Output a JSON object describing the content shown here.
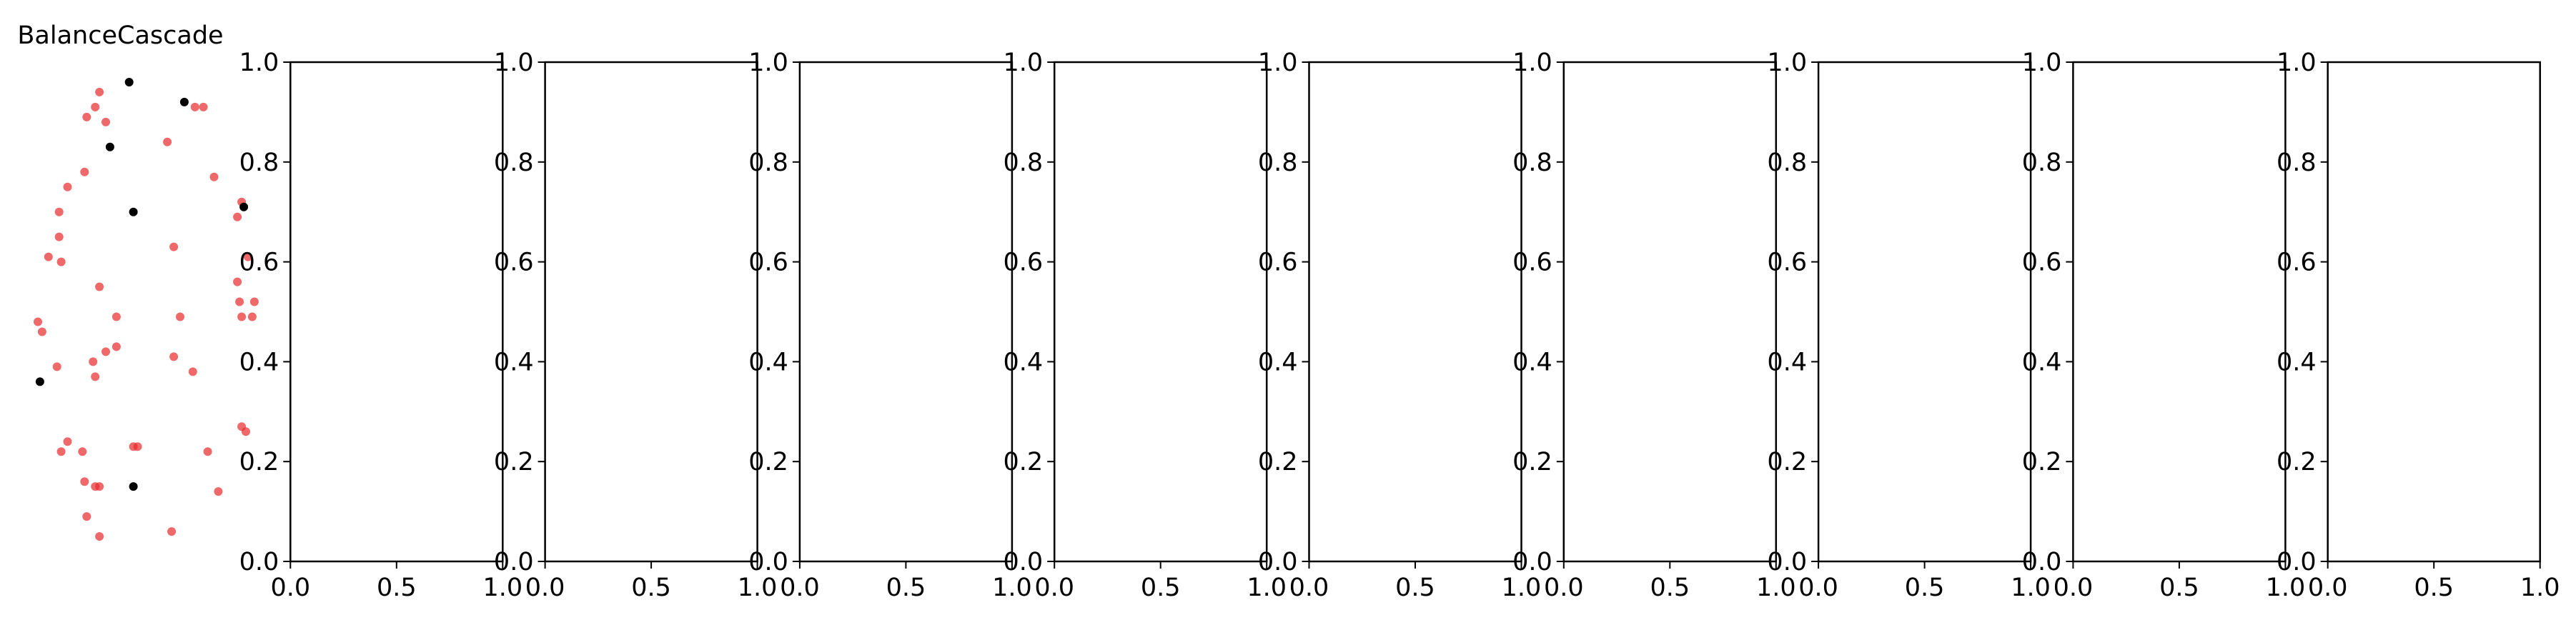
{
  "chart_data": [
    {
      "type": "scatter",
      "title": "BalanceCascade",
      "axes_visible": false,
      "xlim": [
        0,
        1
      ],
      "ylim": [
        0,
        1
      ],
      "series": [
        {
          "color": "#e8282b",
          "points": [
            [
              0.3,
              0.94
            ],
            [
              0.28,
              0.91
            ],
            [
              0.24,
              0.89
            ],
            [
              0.33,
              0.88
            ],
            [
              0.75,
              0.91
            ],
            [
              0.79,
              0.91
            ],
            [
              0.62,
              0.84
            ],
            [
              0.23,
              0.78
            ],
            [
              0.15,
              0.75
            ],
            [
              0.84,
              0.77
            ],
            [
              0.11,
              0.7
            ],
            [
              0.95,
              0.69
            ],
            [
              0.97,
              0.72
            ],
            [
              0.11,
              0.65
            ],
            [
              0.06,
              0.61
            ],
            [
              0.12,
              0.6
            ],
            [
              0.65,
              0.63
            ],
            [
              1.0,
              0.61
            ],
            [
              0.95,
              0.56
            ],
            [
              0.3,
              0.55
            ],
            [
              0.01,
              0.48
            ],
            [
              0.03,
              0.46
            ],
            [
              0.38,
              0.49
            ],
            [
              0.68,
              0.49
            ],
            [
              0.96,
              0.52
            ],
            [
              1.03,
              0.52
            ],
            [
              0.97,
              0.49
            ],
            [
              1.02,
              0.49
            ],
            [
              0.38,
              0.43
            ],
            [
              0.33,
              0.42
            ],
            [
              0.27,
              0.4
            ],
            [
              0.65,
              0.41
            ],
            [
              0.1,
              0.39
            ],
            [
              0.28,
              0.37
            ],
            [
              0.74,
              0.38
            ],
            [
              0.15,
              0.24
            ],
            [
              0.12,
              0.22
            ],
            [
              0.22,
              0.22
            ],
            [
              0.46,
              0.23
            ],
            [
              0.48,
              0.23
            ],
            [
              0.81,
              0.22
            ],
            [
              0.99,
              0.26
            ],
            [
              0.97,
              0.27
            ],
            [
              0.23,
              0.16
            ],
            [
              0.28,
              0.15
            ],
            [
              0.3,
              0.15
            ],
            [
              0.86,
              0.14
            ],
            [
              0.24,
              0.09
            ],
            [
              0.3,
              0.05
            ],
            [
              0.64,
              0.06
            ]
          ]
        },
        {
          "color": "#000000",
          "points": [
            [
              0.44,
              0.96
            ],
            [
              0.7,
              0.92
            ],
            [
              0.35,
              0.83
            ],
            [
              0.46,
              0.7
            ],
            [
              0.98,
              0.71
            ],
            [
              0.02,
              0.36
            ],
            [
              0.46,
              0.15
            ]
          ]
        }
      ]
    },
    {
      "type": "scatter",
      "title": "",
      "xlim": [
        0,
        1
      ],
      "ylim": [
        0,
        1
      ],
      "series": [],
      "xticks": [
        "0.0",
        "0.5",
        "1.0"
      ],
      "yticks": [
        "0.0",
        "0.2",
        "0.4",
        "0.6",
        "0.8",
        "1.0"
      ]
    },
    {
      "type": "scatter",
      "title": "",
      "xlim": [
        0,
        1
      ],
      "ylim": [
        0,
        1
      ],
      "series": [],
      "xticks": [
        "0.0",
        "0.5",
        "1.0"
      ],
      "yticks": [
        "0.0",
        "0.2",
        "0.4",
        "0.6",
        "0.8",
        "1.0"
      ]
    },
    {
      "type": "scatter",
      "title": "",
      "xlim": [
        0,
        1
      ],
      "ylim": [
        0,
        1
      ],
      "series": [],
      "xticks": [
        "0.0",
        "0.5",
        "1.0"
      ],
      "yticks": [
        "0.0",
        "0.2",
        "0.4",
        "0.6",
        "0.8",
        "1.0"
      ]
    },
    {
      "type": "scatter",
      "title": "",
      "xlim": [
        0,
        1
      ],
      "ylim": [
        0,
        1
      ],
      "series": [],
      "xticks": [
        "0.0",
        "0.5",
        "1.0"
      ],
      "yticks": [
        "0.0",
        "0.2",
        "0.4",
        "0.6",
        "0.8",
        "1.0"
      ]
    },
    {
      "type": "scatter",
      "title": "",
      "xlim": [
        0,
        1
      ],
      "ylim": [
        0,
        1
      ],
      "series": [],
      "xticks": [
        "0.0",
        "0.5",
        "1.0"
      ],
      "yticks": [
        "0.0",
        "0.2",
        "0.4",
        "0.6",
        "0.8",
        "1.0"
      ]
    },
    {
      "type": "scatter",
      "title": "",
      "xlim": [
        0,
        1
      ],
      "ylim": [
        0,
        1
      ],
      "series": [],
      "xticks": [
        "0.0",
        "0.5",
        "1.0"
      ],
      "yticks": [
        "0.0",
        "0.2",
        "0.4",
        "0.6",
        "0.8",
        "1.0"
      ]
    },
    {
      "type": "scatter",
      "title": "",
      "xlim": [
        0,
        1
      ],
      "ylim": [
        0,
        1
      ],
      "series": [],
      "xticks": [
        "0.0",
        "0.5",
        "1.0"
      ],
      "yticks": [
        "0.0",
        "0.2",
        "0.4",
        "0.6",
        "0.8",
        "1.0"
      ]
    },
    {
      "type": "scatter",
      "title": "",
      "xlim": [
        0,
        1
      ],
      "ylim": [
        0,
        1
      ],
      "series": [],
      "xticks": [
        "0.0",
        "0.5",
        "1.0"
      ],
      "yticks": [
        "0.0",
        "0.2",
        "0.4",
        "0.6",
        "0.8",
        "1.0"
      ]
    },
    {
      "type": "scatter",
      "title": "",
      "xlim": [
        0,
        1
      ],
      "ylim": [
        0,
        1
      ],
      "series": [],
      "xticks": [
        "0.0",
        "0.5",
        "1.0"
      ],
      "yticks": [
        "0.0",
        "0.2",
        "0.4",
        "0.6",
        "0.8",
        "1.0"
      ]
    }
  ]
}
